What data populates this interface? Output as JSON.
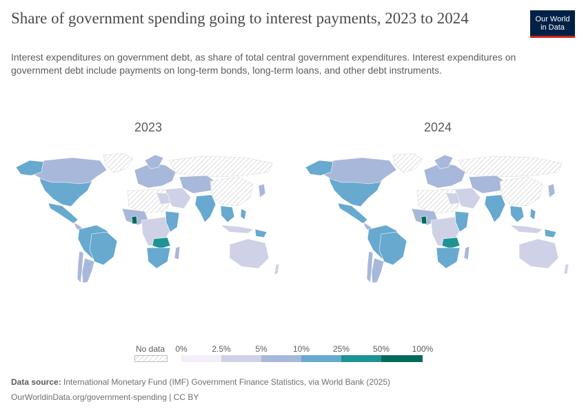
{
  "title": "Share of government spending going to interest payments, 2023 to 2024",
  "subtitle": "Interest expenditures on government debt, as share of total central government expenditures. Interest expenditures on government debt include payments on long-term bonds, long-term loans, and other debt instruments.",
  "logo": {
    "line1": "Our World",
    "line2": "in Data"
  },
  "maps": [
    {
      "year_label": "2023"
    },
    {
      "year_label": "2024"
    }
  ],
  "legend": {
    "no_data_label": "No data",
    "bins": [
      {
        "from": "0%",
        "to": "2.5%",
        "color": "#f3eef7"
      },
      {
        "from": "2.5%",
        "to": "5%",
        "color": "#cfd1e6"
      },
      {
        "from": "5%",
        "to": "10%",
        "color": "#a8b8da"
      },
      {
        "from": "10%",
        "to": "25%",
        "color": "#67a9cf"
      },
      {
        "from": "25%",
        "to": "50%",
        "color": "#1d9394"
      },
      {
        "from": "50%",
        "to": "100%",
        "color": "#006b5a"
      }
    ],
    "tick_labels": [
      "0%",
      "2.5%",
      "5%",
      "10%",
      "25%",
      "50%",
      "100%"
    ]
  },
  "footer": {
    "source_label": "Data source:",
    "source_text": "International Monetary Fund (IMF) Government Finance Statistics, via World Bank (2025)",
    "url_text": "OurWorldinData.org/government-spending | CC BY"
  },
  "colors": {
    "bin0": "#f3eef7",
    "bin1": "#cfd1e6",
    "bin2": "#a8b8da",
    "bin3": "#67a9cf",
    "bin4": "#1d9394",
    "bin5": "#006b5a",
    "no_data": "#e6e6e6",
    "brand": "#002147",
    "brand_accent": "#ce261e"
  }
}
